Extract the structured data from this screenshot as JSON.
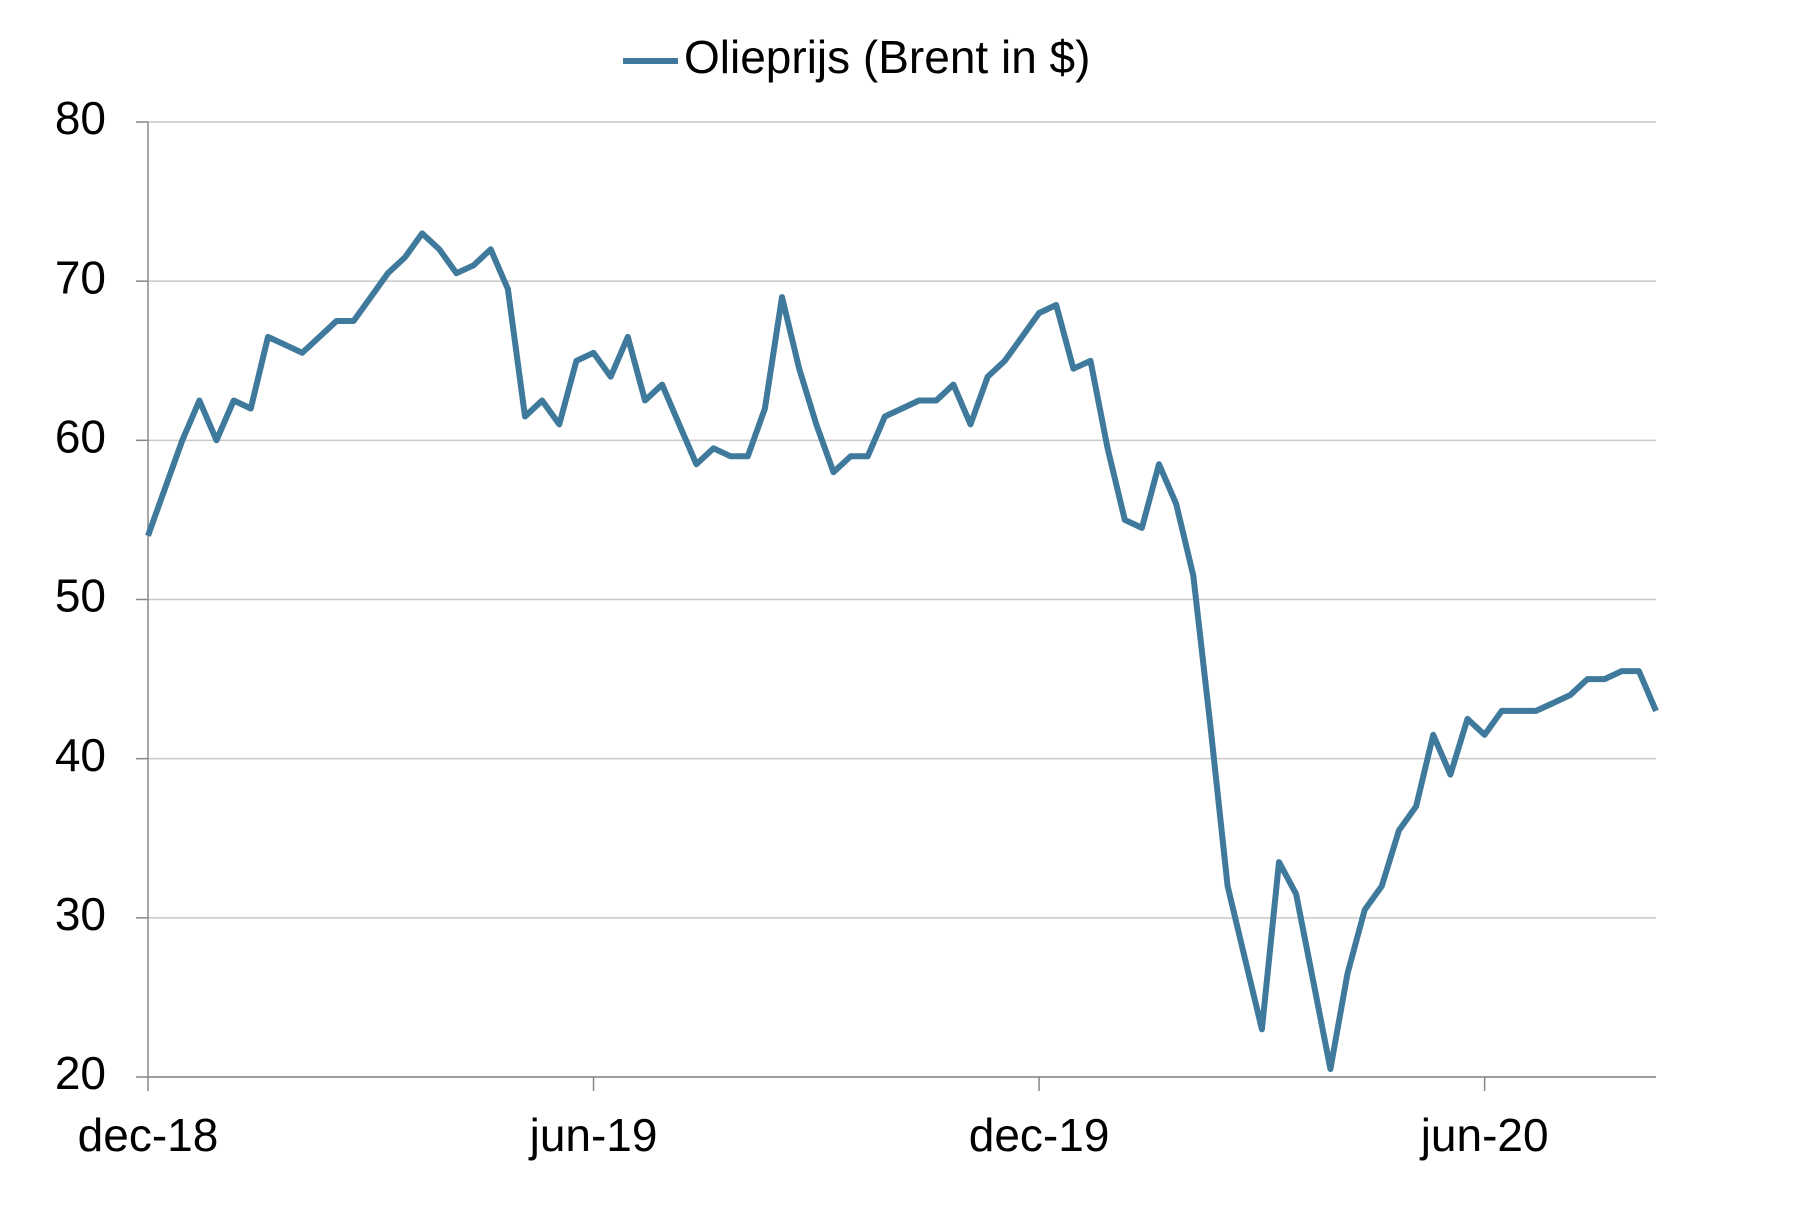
{
  "chart_data": {
    "type": "line",
    "legend_position": "top",
    "categories": [
      "dec-18",
      null,
      null,
      null,
      null,
      null,
      null,
      null,
      null,
      null,
      null,
      null,
      null,
      null,
      null,
      null,
      null,
      null,
      null,
      null,
      null,
      null,
      null,
      null,
      null,
      null,
      "jun-19",
      null,
      null,
      null,
      null,
      null,
      null,
      null,
      null,
      null,
      null,
      null,
      null,
      null,
      null,
      null,
      null,
      null,
      null,
      null,
      null,
      null,
      null,
      null,
      null,
      null,
      "dec-19",
      null,
      null,
      null,
      null,
      null,
      null,
      null,
      null,
      null,
      null,
      null,
      null,
      null,
      null,
      null,
      null,
      null,
      null,
      null,
      null,
      null,
      null,
      null,
      null,
      null,
      "jun-20",
      null,
      null,
      null,
      null,
      null,
      null,
      null,
      null,
      null,
      null
    ],
    "series": [
      {
        "name": "Olieprijs (Brent in $)",
        "color": "#3f7a9c",
        "values": [
          54,
          57,
          60,
          62.5,
          60,
          62.5,
          62,
          66.5,
          66,
          65.5,
          66.5,
          67.5,
          67.5,
          69,
          70.5,
          71.5,
          73,
          72,
          70.5,
          71,
          72,
          69.5,
          61.5,
          62.5,
          61,
          65,
          65.5,
          64,
          66.5,
          62.5,
          63.5,
          61,
          58.5,
          59.5,
          59,
          59,
          62,
          69,
          64.5,
          61,
          58,
          59,
          59,
          61.5,
          62,
          62.5,
          62.5,
          63.5,
          61,
          64,
          65,
          66.5,
          68,
          68.5,
          64.5,
          65,
          59.5,
          55,
          54.5,
          58.5,
          56,
          51.5,
          42,
          32,
          27.5,
          23,
          33.5,
          31.5,
          26,
          20.5,
          26.5,
          30.5,
          32,
          35.5,
          37,
          41.5,
          39,
          42.5,
          41.5,
          43,
          43,
          43,
          43.5,
          44,
          45,
          45,
          45.5,
          45.5,
          43
        ]
      }
    ],
    "ylim": [
      20,
      80
    ],
    "yticks": [
      20,
      30,
      40,
      50,
      60,
      70,
      80
    ],
    "grid": true
  }
}
